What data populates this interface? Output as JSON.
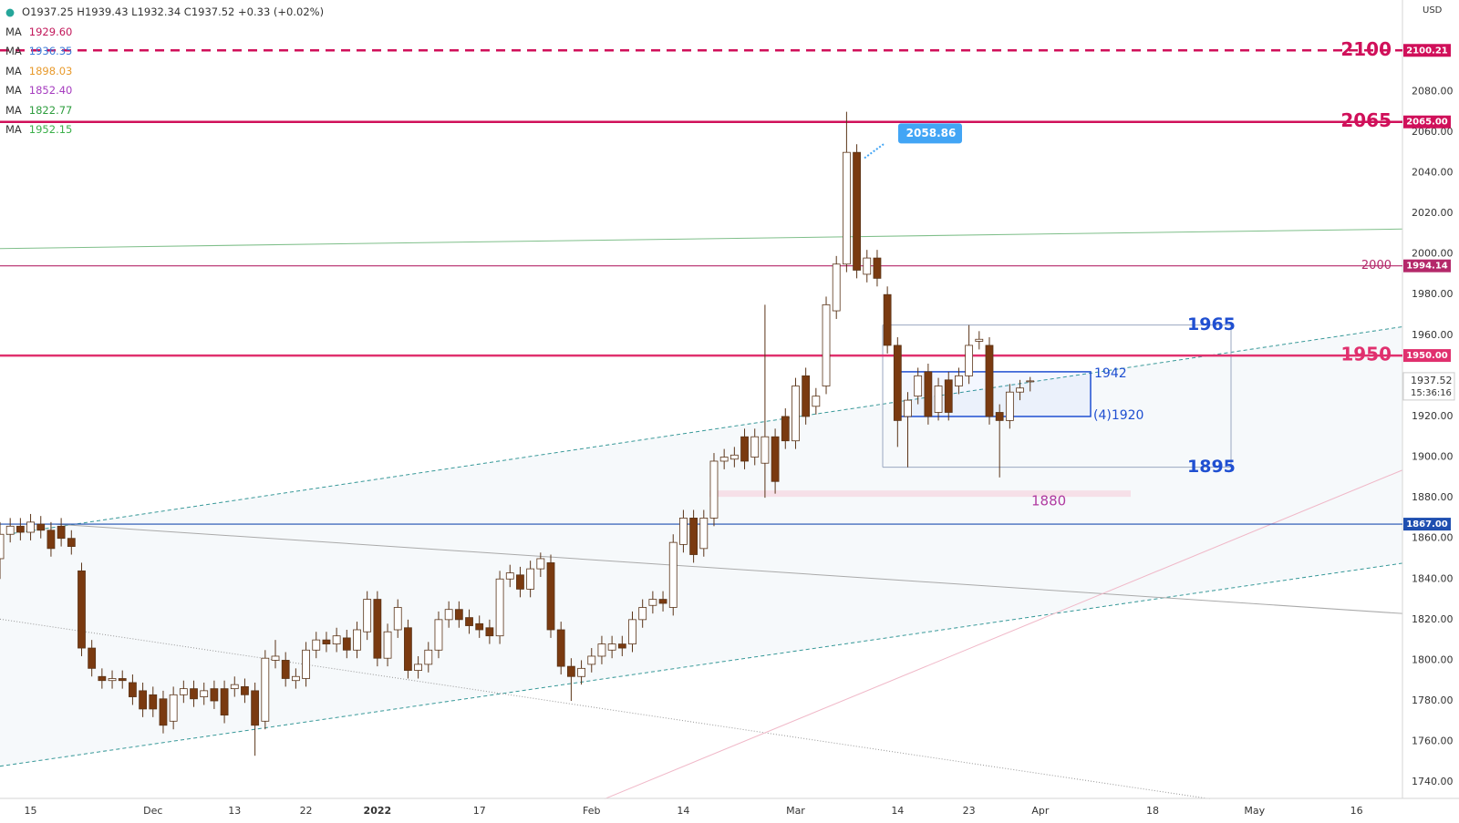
{
  "chart_data": {
    "type": "candlestick",
    "ohlc_legend": "O1937.25 H1939.43 L1932.34 C1937.52 +0.33 (+0.02%)",
    "currency": "USD",
    "moving_averages": [
      {
        "name": "MA",
        "value": 1929.6,
        "value_label": "1929.60",
        "color": "#c2185b"
      },
      {
        "name": "MA",
        "value": 1936.35,
        "color": "#3d7bd9"
      },
      {
        "name": "MA",
        "value": 1898.03,
        "color": "#e89a2c"
      },
      {
        "name": "MA",
        "value": 1852.4,
        "value_label": "1852.40",
        "color": "#a63cbf"
      },
      {
        "name": "MA",
        "value": 1822.77,
        "color": "#2e9e3e"
      },
      {
        "name": "MA",
        "value": 1952.15,
        "color": "#3bb04a"
      }
    ],
    "open": [
      1850,
      1862,
      1866,
      1863,
      1867,
      1864,
      1866,
      1860,
      1844,
      1806,
      1792,
      1790,
      1791,
      1789,
      1785,
      1783,
      1781,
      1770,
      1783,
      1786,
      1782,
      1786,
      1786,
      1786,
      1787,
      1785,
      1770,
      1800,
      1800,
      1790,
      1791,
      1805,
      1810,
      1808,
      1811,
      1805,
      1814,
      1830,
      1801,
      1815,
      1816,
      1795,
      1798,
      1805,
      1820,
      1825,
      1821,
      1818,
      1816,
      1812,
      1840,
      1842,
      1835,
      1845,
      1848,
      1815,
      1797,
      1792,
      1798,
      1802,
      1805,
      1808,
      1808,
      1820,
      1827,
      1830,
      1826,
      1857,
      1870,
      1855,
      1870,
      1898,
      1899,
      1910,
      1900,
      1897,
      1910,
      1920,
      1908,
      1940,
      1925,
      1935,
      1972,
      1995,
      2050,
      1990,
      1998,
      1980,
      1955,
      1920,
      1930,
      1942,
      1922,
      1938,
      1935,
      1940,
      1957,
      1955,
      1922,
      1918,
      1932,
      1937.25
    ],
    "high": [
      1868,
      1870,
      1870,
      1872,
      1871,
      1868,
      1870,
      1864,
      1848,
      1810,
      1796,
      1795,
      1795,
      1793,
      1789,
      1787,
      1785,
      1787,
      1790,
      1790,
      1789,
      1790,
      1790,
      1792,
      1791,
      1789,
      1805,
      1810,
      1804,
      1796,
      1809,
      1814,
      1814,
      1816,
      1815,
      1819,
      1834,
      1834,
      1818,
      1830,
      1820,
      1802,
      1809,
      1824,
      1829,
      1829,
      1825,
      1822,
      1820,
      1844,
      1847,
      1846,
      1849,
      1853,
      1852,
      1819,
      1801,
      1800,
      1806,
      1812,
      1812,
      1812,
      1824,
      1830,
      1834,
      1834,
      1862,
      1874,
      1874,
      1874,
      1902,
      1904,
      1905,
      1914,
      1914,
      1975,
      1914,
      1924,
      1939,
      1944,
      1934,
      1979,
      1999,
      2070,
      2054,
      2002,
      2002,
      1984,
      1959,
      1932,
      1944,
      1946,
      1939,
      1942,
      1944,
      1965,
      1962,
      1959,
      1926,
      1936,
      1938,
      1939.43
    ],
    "low": [
      1840,
      1858,
      1859,
      1859,
      1860,
      1851,
      1856,
      1852,
      1802,
      1792,
      1786,
      1786,
      1786,
      1778,
      1772,
      1772,
      1764,
      1766,
      1779,
      1777,
      1778,
      1776,
      1769,
      1782,
      1779,
      1753,
      1766,
      1796,
      1787,
      1786,
      1787,
      1801,
      1804,
      1804,
      1801,
      1801,
      1810,
      1797,
      1797,
      1811,
      1791,
      1791,
      1794,
      1801,
      1816,
      1816,
      1813,
      1811,
      1808,
      1808,
      1836,
      1831,
      1831,
      1841,
      1811,
      1793,
      1780,
      1788,
      1794,
      1798,
      1801,
      1802,
      1804,
      1816,
      1823,
      1824,
      1822,
      1853,
      1848,
      1851,
      1866,
      1894,
      1895,
      1894,
      1896,
      1880,
      1882,
      1904,
      1904,
      1916,
      1921,
      1931,
      1968,
      1991,
      1988,
      1986,
      1984,
      1951,
      1905,
      1895,
      1926,
      1916,
      1918,
      1918,
      1931,
      1936,
      1953,
      1916,
      1890,
      1914,
      1928,
      1932.34
    ],
    "close": [
      1862,
      1866,
      1863,
      1868,
      1864,
      1855,
      1860,
      1856,
      1806,
      1796,
      1790,
      1791,
      1790,
      1782,
      1776,
      1776,
      1768,
      1783,
      1786,
      1781,
      1785,
      1780,
      1773,
      1788,
      1783,
      1768,
      1801,
      1802,
      1791,
      1792,
      1805,
      1810,
      1808,
      1812,
      1805,
      1815,
      1830,
      1801,
      1814,
      1826,
      1795,
      1798,
      1805,
      1820,
      1825,
      1820,
      1817,
      1815,
      1812,
      1840,
      1843,
      1835,
      1845,
      1850,
      1815,
      1797,
      1792,
      1796,
      1802,
      1808,
      1808,
      1806,
      1820,
      1826,
      1830,
      1828,
      1858,
      1870,
      1852,
      1870,
      1898,
      1900,
      1901,
      1898,
      1910,
      1910,
      1888,
      1908,
      1935,
      1920,
      1930,
      1975,
      1995,
      2050,
      1992,
      1998,
      1988,
      1955,
      1918,
      1928,
      1940,
      1920,
      1935,
      1922,
      1940,
      1955,
      1958,
      1920,
      1918,
      1932,
      1934,
      1937.52
    ],
    "up_color": "#ffffff",
    "down_color": "#7a3a10",
    "wick_color": "#5a3418",
    "countdown": "15:36:16",
    "xlim": [
      0,
      137.5
    ],
    "ylim": [
      1732,
      2125
    ],
    "xticks": [
      {
        "value": 3,
        "label": "15"
      },
      {
        "value": 15,
        "label": "Dec"
      },
      {
        "value": 23,
        "label": "13"
      },
      {
        "value": 30,
        "label": "22"
      },
      {
        "value": 37,
        "label": "2022"
      },
      {
        "value": 47,
        "label": "17"
      },
      {
        "value": 58,
        "label": "Feb"
      },
      {
        "value": 67,
        "label": "14"
      },
      {
        "value": 78,
        "label": "Mar"
      },
      {
        "value": 88,
        "label": "14"
      },
      {
        "value": 95,
        "label": "23"
      },
      {
        "value": 102,
        "label": "Apr"
      },
      {
        "value": 113,
        "label": "18"
      },
      {
        "value": 123,
        "label": "May"
      },
      {
        "value": 133,
        "label": "16"
      }
    ],
    "yticks": [
      {
        "value": 1740,
        "label": "1740.00"
      },
      {
        "value": 1760,
        "label": "1760.00"
      },
      {
        "value": 1780,
        "label": "1780.00"
      },
      {
        "value": 1800,
        "label": "1800.00"
      },
      {
        "value": 1820,
        "label": "1820.00"
      },
      {
        "value": 1840,
        "label": "1840.00"
      },
      {
        "value": 1860,
        "label": "1860.00"
      },
      {
        "value": 1880,
        "label": "1880.00"
      },
      {
        "value": 1900,
        "label": "1900.00"
      },
      {
        "value": 1920,
        "label": "1920.00"
      },
      {
        "value": 1960,
        "label": "1960.00"
      },
      {
        "value": 1980,
        "label": "1980.00"
      },
      {
        "value": 2000,
        "label": "2000.00"
      },
      {
        "value": 2020,
        "label": "2020.00"
      },
      {
        "value": 2040,
        "label": "2040.00"
      },
      {
        "value": 2060,
        "label": "2060.00"
      },
      {
        "value": 2080,
        "label": "2080.00"
      }
    ],
    "grid": false,
    "levels": [
      {
        "value": 2100.21,
        "label": "2100",
        "price_label": "2100.21",
        "color": "#d0105a",
        "style": "dashed",
        "emphasis": true
      },
      {
        "value": 2065,
        "label": "2065",
        "price_label": "2065.00",
        "color": "#d0105a",
        "style": "solid",
        "emphasis": true
      },
      {
        "value": 1994.14,
        "label": "2000",
        "price_label": "1994.14",
        "color": "#b4286a",
        "style": "thin",
        "emphasis": false
      },
      {
        "value": 1950,
        "label": "1950",
        "price_label": "1950.00",
        "color": "#e0306e",
        "style": "solid",
        "emphasis": true
      },
      {
        "value": 1867,
        "price_label": "1867.00",
        "color": "#1f4fb0",
        "style": "thin",
        "emphasis": false
      }
    ],
    "callout": 2058.86,
    "box": {
      "top": 1942,
      "bottom": 1920,
      "bottom_label": "(4)1920",
      "color": "#1f4fd1"
    },
    "range": {
      "top": 1965,
      "bottom": 1895,
      "color": "#1f4fd1"
    },
    "support_zone": {
      "value": 1880,
      "color": "#b03aa0"
    }
  }
}
